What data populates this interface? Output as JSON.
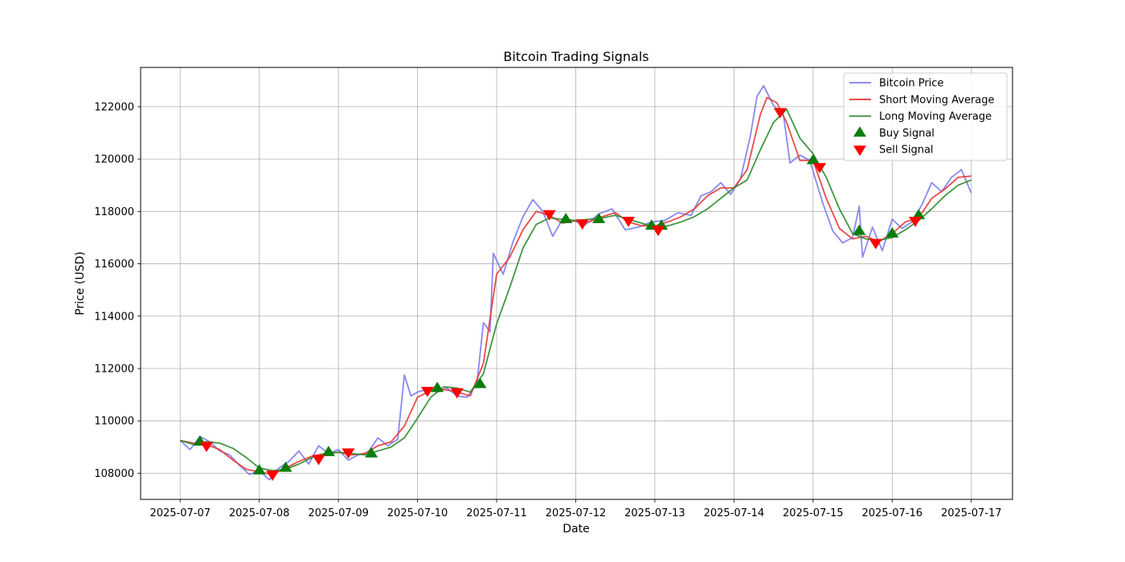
{
  "chart_data": {
    "type": "line",
    "title": "Bitcoin Trading Signals",
    "xlabel": "Date",
    "ylabel": "Price (USD)",
    "xlim": [
      "2025-07-06 12:00",
      "2025-07-17 12:30"
    ],
    "ylim": [
      107000,
      123500
    ],
    "x_ticks": [
      "2025-07-07",
      "2025-07-08",
      "2025-07-09",
      "2025-07-10",
      "2025-07-11",
      "2025-07-12",
      "2025-07-13",
      "2025-07-14",
      "2025-07-15",
      "2025-07-16",
      "2025-07-17"
    ],
    "y_ticks": [
      108000,
      110000,
      112000,
      114000,
      116000,
      118000,
      120000,
      122000
    ],
    "grid": true,
    "legend_position": "top-right",
    "series": [
      {
        "name": "Bitcoin Price",
        "color": "#7b7bf0",
        "points": [
          [
            "2025-07-07 00:00",
            109250
          ],
          [
            "2025-07-07 03:00",
            108900
          ],
          [
            "2025-07-07 06:00",
            109400
          ],
          [
            "2025-07-07 09:00",
            109200
          ],
          [
            "2025-07-07 12:00",
            108850
          ],
          [
            "2025-07-07 15:00",
            108700
          ],
          [
            "2025-07-07 18:00",
            108300
          ],
          [
            "2025-07-07 21:00",
            107950
          ],
          [
            "2025-07-08 00:00",
            108100
          ],
          [
            "2025-07-08 03:00",
            107750
          ],
          [
            "2025-07-08 06:00",
            108200
          ],
          [
            "2025-07-08 09:00",
            108450
          ],
          [
            "2025-07-08 12:00",
            108850
          ],
          [
            "2025-07-08 15:00",
            108350
          ],
          [
            "2025-07-08 18:00",
            109050
          ],
          [
            "2025-07-08 21:00",
            108750
          ],
          [
            "2025-07-09 00:00",
            108900
          ],
          [
            "2025-07-09 03:00",
            108500
          ],
          [
            "2025-07-09 06:00",
            108700
          ],
          [
            "2025-07-09 09:00",
            108800
          ],
          [
            "2025-07-09 12:00",
            109350
          ],
          [
            "2025-07-09 15:00",
            109050
          ],
          [
            "2025-07-09 18:00",
            109300
          ],
          [
            "2025-07-09 20:00",
            111750
          ],
          [
            "2025-07-09 22:00",
            110950
          ],
          [
            "2025-07-10 00:00",
            111100
          ],
          [
            "2025-07-10 03:00",
            111200
          ],
          [
            "2025-07-10 06:00",
            111100
          ],
          [
            "2025-07-10 09:00",
            111250
          ],
          [
            "2025-07-10 12:00",
            110950
          ],
          [
            "2025-07-10 15:00",
            110900
          ],
          [
            "2025-07-10 18:00",
            111400
          ],
          [
            "2025-07-10 20:00",
            113750
          ],
          [
            "2025-07-10 22:00",
            113400
          ],
          [
            "2025-07-10 23:00",
            116400
          ],
          [
            "2025-07-11 02:00",
            115600
          ],
          [
            "2025-07-11 05:00",
            116850
          ],
          [
            "2025-07-11 08:00",
            117800
          ],
          [
            "2025-07-11 11:00",
            118450
          ],
          [
            "2025-07-11 14:00",
            118000
          ],
          [
            "2025-07-11 17:00",
            117050
          ],
          [
            "2025-07-11 20:00",
            117700
          ],
          [
            "2025-07-11 23:00",
            117650
          ],
          [
            "2025-07-12 03:00",
            117500
          ],
          [
            "2025-07-12 07:00",
            117900
          ],
          [
            "2025-07-12 11:00",
            118100
          ],
          [
            "2025-07-12 15:00",
            117300
          ],
          [
            "2025-07-12 19:00",
            117400
          ],
          [
            "2025-07-12 23:00",
            117600
          ],
          [
            "2025-07-13 03:00",
            117650
          ],
          [
            "2025-07-13 07:00",
            117950
          ],
          [
            "2025-07-13 11:00",
            117850
          ],
          [
            "2025-07-13 14:00",
            118600
          ],
          [
            "2025-07-13 17:00",
            118750
          ],
          [
            "2025-07-13 20:00",
            119100
          ],
          [
            "2025-07-13 23:00",
            118650
          ],
          [
            "2025-07-14 02:00",
            119250
          ],
          [
            "2025-07-14 05:00",
            120900
          ],
          [
            "2025-07-14 07:00",
            122400
          ],
          [
            "2025-07-14 09:00",
            122800
          ],
          [
            "2025-07-14 12:00",
            122050
          ],
          [
            "2025-07-14 15:00",
            121700
          ],
          [
            "2025-07-14 17:00",
            119850
          ],
          [
            "2025-07-14 20:00",
            120150
          ],
          [
            "2025-07-14 23:00",
            119950
          ],
          [
            "2025-07-15 03:00",
            118300
          ],
          [
            "2025-07-15 06:00",
            117250
          ],
          [
            "2025-07-15 09:00",
            116800
          ],
          [
            "2025-07-15 12:00",
            117000
          ],
          [
            "2025-07-15 14:00",
            118200
          ],
          [
            "2025-07-15 15:00",
            116250
          ],
          [
            "2025-07-15 18:00",
            117400
          ],
          [
            "2025-07-15 21:00",
            116500
          ],
          [
            "2025-07-16 00:00",
            117700
          ],
          [
            "2025-07-16 03:00",
            117350
          ],
          [
            "2025-07-16 06:00",
            117600
          ],
          [
            "2025-07-16 09:00",
            118250
          ],
          [
            "2025-07-16 12:00",
            119100
          ],
          [
            "2025-07-16 15:00",
            118750
          ],
          [
            "2025-07-16 18:00",
            119300
          ],
          [
            "2025-07-16 21:00",
            119600
          ],
          [
            "2025-07-17 00:00",
            118700
          ]
        ]
      },
      {
        "name": "Short Moving Average",
        "color": "#e53935",
        "points": [
          [
            "2025-07-07 00:00",
            109250
          ],
          [
            "2025-07-07 04:00",
            109150
          ],
          [
            "2025-07-07 08:00",
            109100
          ],
          [
            "2025-07-07 12:00",
            108900
          ],
          [
            "2025-07-07 16:00",
            108500
          ],
          [
            "2025-07-07 20:00",
            108150
          ],
          [
            "2025-07-08 00:00",
            108050
          ],
          [
            "2025-07-08 04:00",
            107950
          ],
          [
            "2025-07-08 08:00",
            108200
          ],
          [
            "2025-07-08 12:00",
            108450
          ],
          [
            "2025-07-08 16:00",
            108650
          ],
          [
            "2025-07-08 20:00",
            108750
          ],
          [
            "2025-07-09 00:00",
            108800
          ],
          [
            "2025-07-09 04:00",
            108700
          ],
          [
            "2025-07-09 08:00",
            108750
          ],
          [
            "2025-07-09 12:00",
            109050
          ],
          [
            "2025-07-09 16:00",
            109200
          ],
          [
            "2025-07-09 20:00",
            109800
          ],
          [
            "2025-07-10 00:00",
            110900
          ],
          [
            "2025-07-10 04:00",
            111150
          ],
          [
            "2025-07-10 08:00",
            111200
          ],
          [
            "2025-07-10 12:00",
            111100
          ],
          [
            "2025-07-10 16:00",
            110950
          ],
          [
            "2025-07-10 20:00",
            112200
          ],
          [
            "2025-07-11 00:00",
            115600
          ],
          [
            "2025-07-11 04:00",
            116250
          ],
          [
            "2025-07-11 08:00",
            117300
          ],
          [
            "2025-07-11 12:00",
            118000
          ],
          [
            "2025-07-11 16:00",
            117850
          ],
          [
            "2025-07-11 20:00",
            117550
          ],
          [
            "2025-07-12 00:00",
            117650
          ],
          [
            "2025-07-12 04:00",
            117600
          ],
          [
            "2025-07-12 08:00",
            117800
          ],
          [
            "2025-07-12 12:00",
            117950
          ],
          [
            "2025-07-12 16:00",
            117600
          ],
          [
            "2025-07-12 20:00",
            117450
          ],
          [
            "2025-07-13 00:00",
            117450
          ],
          [
            "2025-07-13 04:00",
            117600
          ],
          [
            "2025-07-13 08:00",
            117800
          ],
          [
            "2025-07-13 12:00",
            118100
          ],
          [
            "2025-07-13 16:00",
            118600
          ],
          [
            "2025-07-13 20:00",
            118900
          ],
          [
            "2025-07-14 00:00",
            118900
          ],
          [
            "2025-07-14 04:00",
            119600
          ],
          [
            "2025-07-14 08:00",
            121700
          ],
          [
            "2025-07-14 10:00",
            122350
          ],
          [
            "2025-07-14 13:00",
            122150
          ],
          [
            "2025-07-14 16:00",
            121400
          ],
          [
            "2025-07-14 20:00",
            119950
          ],
          [
            "2025-07-15 00:00",
            119950
          ],
          [
            "2025-07-15 04:00",
            118500
          ],
          [
            "2025-07-15 08:00",
            117350
          ],
          [
            "2025-07-15 12:00",
            116950
          ],
          [
            "2025-07-15 16:00",
            117050
          ],
          [
            "2025-07-15 20:00",
            116850
          ],
          [
            "2025-07-16 00:00",
            117150
          ],
          [
            "2025-07-16 04:00",
            117600
          ],
          [
            "2025-07-16 08:00",
            117750
          ],
          [
            "2025-07-16 12:00",
            118500
          ],
          [
            "2025-07-16 16:00",
            118850
          ],
          [
            "2025-07-16 20:00",
            119300
          ],
          [
            "2025-07-17 00:00",
            119350
          ]
        ]
      },
      {
        "name": "Long Moving Average",
        "color": "#2e8b2e",
        "points": [
          [
            "2025-07-07 00:00",
            109250
          ],
          [
            "2025-07-07 04:00",
            109100
          ],
          [
            "2025-07-07 08:00",
            109200
          ],
          [
            "2025-07-07 12:00",
            109150
          ],
          [
            "2025-07-07 16:00",
            108950
          ],
          [
            "2025-07-07 20:00",
            108600
          ],
          [
            "2025-07-08 00:00",
            108200
          ],
          [
            "2025-07-08 04:00",
            108100
          ],
          [
            "2025-07-08 08:00",
            108150
          ],
          [
            "2025-07-08 12:00",
            108350
          ],
          [
            "2025-07-08 16:00",
            108600
          ],
          [
            "2025-07-08 20:00",
            108750
          ],
          [
            "2025-07-09 00:00",
            108800
          ],
          [
            "2025-07-09 04:00",
            108750
          ],
          [
            "2025-07-09 08:00",
            108700
          ],
          [
            "2025-07-09 12:00",
            108850
          ],
          [
            "2025-07-09 16:00",
            109000
          ],
          [
            "2025-07-09 20:00",
            109350
          ],
          [
            "2025-07-10 00:00",
            110100
          ],
          [
            "2025-07-10 04:00",
            110900
          ],
          [
            "2025-07-10 08:00",
            111300
          ],
          [
            "2025-07-10 12:00",
            111250
          ],
          [
            "2025-07-10 16:00",
            111100
          ],
          [
            "2025-07-10 20:00",
            111800
          ],
          [
            "2025-07-11 00:00",
            113700
          ],
          [
            "2025-07-11 04:00",
            115100
          ],
          [
            "2025-07-11 08:00",
            116600
          ],
          [
            "2025-07-11 12:00",
            117500
          ],
          [
            "2025-07-11 16:00",
            117750
          ],
          [
            "2025-07-11 20:00",
            117700
          ],
          [
            "2025-07-12 00:00",
            117650
          ],
          [
            "2025-07-12 04:00",
            117700
          ],
          [
            "2025-07-12 08:00",
            117750
          ],
          [
            "2025-07-12 12:00",
            117850
          ],
          [
            "2025-07-12 16:00",
            117700
          ],
          [
            "2025-07-12 20:00",
            117550
          ],
          [
            "2025-07-13 00:00",
            117400
          ],
          [
            "2025-07-13 04:00",
            117450
          ],
          [
            "2025-07-13 08:00",
            117600
          ],
          [
            "2025-07-13 12:00",
            117800
          ],
          [
            "2025-07-13 16:00",
            118100
          ],
          [
            "2025-07-13 20:00",
            118500
          ],
          [
            "2025-07-14 00:00",
            118900
          ],
          [
            "2025-07-14 04:00",
            119200
          ],
          [
            "2025-07-14 08:00",
            120350
          ],
          [
            "2025-07-14 12:00",
            121400
          ],
          [
            "2025-07-14 16:00",
            121900
          ],
          [
            "2025-07-14 20:00",
            120800
          ],
          [
            "2025-07-15 00:00",
            120200
          ],
          [
            "2025-07-15 04:00",
            119300
          ],
          [
            "2025-07-15 08:00",
            118100
          ],
          [
            "2025-07-15 12:00",
            117150
          ],
          [
            "2025-07-15 16:00",
            116950
          ],
          [
            "2025-07-15 20:00",
            116900
          ],
          [
            "2025-07-16 00:00",
            117000
          ],
          [
            "2025-07-16 04:00",
            117300
          ],
          [
            "2025-07-16 08:00",
            117650
          ],
          [
            "2025-07-16 12:00",
            118100
          ],
          [
            "2025-07-16 16:00",
            118600
          ],
          [
            "2025-07-16 20:00",
            119000
          ],
          [
            "2025-07-17 00:00",
            119200
          ]
        ]
      }
    ],
    "buy_signals": {
      "name": "Buy Signal",
      "color": "#0a7d0a",
      "points": [
        [
          "2025-07-07 06:00",
          109200
        ],
        [
          "2025-07-08 00:00",
          108100
        ],
        [
          "2025-07-08 08:00",
          108200
        ],
        [
          "2025-07-08 21:00",
          108800
        ],
        [
          "2025-07-09 10:00",
          108750
        ],
        [
          "2025-07-10 06:00",
          111250
        ],
        [
          "2025-07-10 19:00",
          111400
        ],
        [
          "2025-07-11 21:00",
          117700
        ],
        [
          "2025-07-12 07:00",
          117700
        ],
        [
          "2025-07-12 23:00",
          117450
        ],
        [
          "2025-07-13 02:00",
          117450
        ],
        [
          "2025-07-15 00:00",
          119950
        ],
        [
          "2025-07-15 14:00",
          117250
        ],
        [
          "2025-07-16 00:00",
          117150
        ],
        [
          "2025-07-16 08:00",
          117850
        ]
      ]
    },
    "sell_signals": {
      "name": "Sell Signal",
      "color": "#ff0000",
      "points": [
        [
          "2025-07-07 08:00",
          109050
        ],
        [
          "2025-07-08 04:00",
          107950
        ],
        [
          "2025-07-08 18:00",
          108550
        ],
        [
          "2025-07-09 03:00",
          108800
        ],
        [
          "2025-07-10 03:00",
          111150
        ],
        [
          "2025-07-10 12:00",
          111100
        ],
        [
          "2025-07-11 16:00",
          117900
        ],
        [
          "2025-07-12 02:00",
          117550
        ],
        [
          "2025-07-12 16:00",
          117650
        ],
        [
          "2025-07-13 01:00",
          117300
        ],
        [
          "2025-07-14 14:00",
          121800
        ],
        [
          "2025-07-15 02:00",
          119700
        ],
        [
          "2025-07-15 19:00",
          116800
        ],
        [
          "2025-07-16 07:00",
          117650
        ]
      ]
    }
  }
}
